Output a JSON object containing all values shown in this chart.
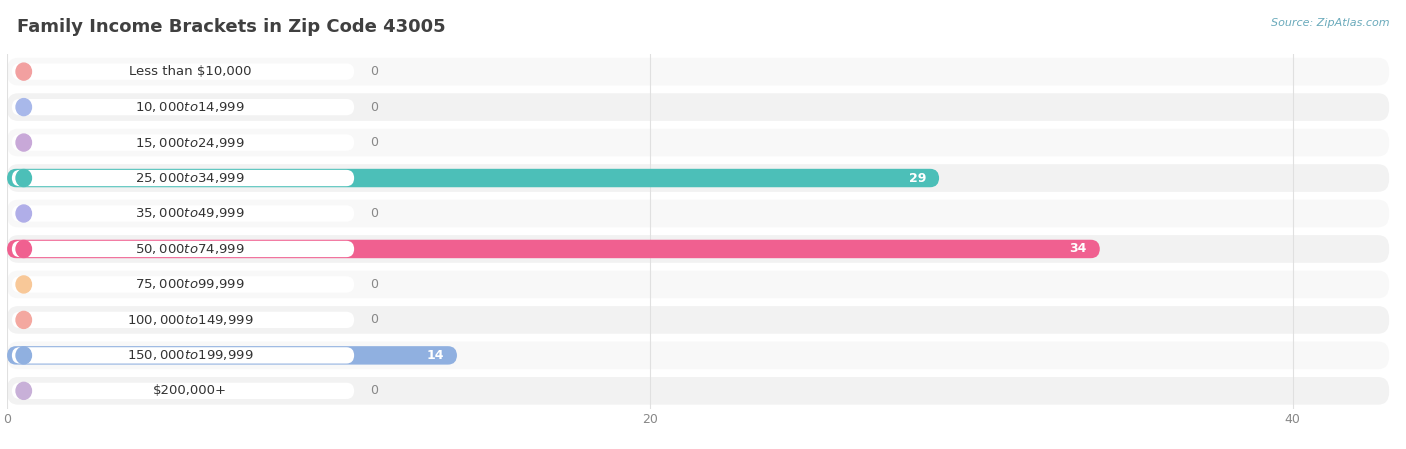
{
  "title": "Family Income Brackets in Zip Code 43005",
  "source": "Source: ZipAtlas.com",
  "categories": [
    "Less than $10,000",
    "$10,000 to $14,999",
    "$15,000 to $24,999",
    "$25,000 to $34,999",
    "$35,000 to $49,999",
    "$50,000 to $74,999",
    "$75,000 to $99,999",
    "$100,000 to $149,999",
    "$150,000 to $199,999",
    "$200,000+"
  ],
  "values": [
    0,
    0,
    0,
    29,
    0,
    34,
    0,
    0,
    14,
    0
  ],
  "bar_colors": [
    "#F2A0A0",
    "#A8B8EA",
    "#C8A8D8",
    "#4CBFB8",
    "#B0AEE8",
    "#F06090",
    "#F8C898",
    "#F4A8A0",
    "#90B0E0",
    "#C8B0D8"
  ],
  "background_color": "#ffffff",
  "row_bg_colors": [
    "#f8f8f8",
    "#f2f2f2"
  ],
  "grid_color": "#e0e0e0",
  "xlim": [
    0,
    43
  ],
  "xticks": [
    0,
    20,
    40
  ],
  "title_fontsize": 13,
  "label_fontsize": 9.5,
  "value_fontsize": 9,
  "source_fontsize": 8
}
